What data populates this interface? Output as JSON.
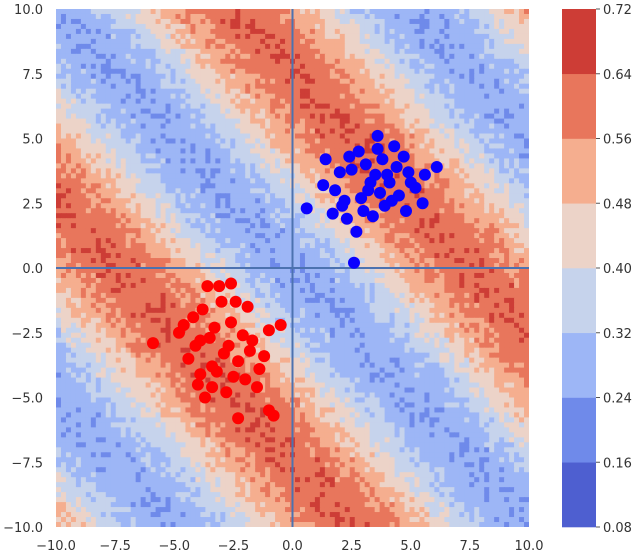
{
  "chart_data": {
    "type": "heatmap",
    "title": "",
    "xlabel": "",
    "ylabel": "",
    "xlim": [
      -10,
      10
    ],
    "ylim": [
      -10,
      10
    ],
    "x_ticks": [
      "−10.0",
      "−7.5",
      "−5.0",
      "−2.5",
      "0.0",
      "2.5",
      "5.0",
      "7.5",
      "10.0"
    ],
    "y_ticks": [
      "10.0",
      "7.5",
      "5.0",
      "2.5",
      "0.0",
      "−2.5",
      "−5.0",
      "−7.5",
      "−10.0"
    ],
    "x_tick_values": [
      -10,
      -7.5,
      -5,
      -2.5,
      0,
      2.5,
      5,
      7.5,
      10
    ],
    "y_tick_values": [
      10,
      7.5,
      5,
      2.5,
      0,
      -2.5,
      -5,
      -7.5,
      -10
    ],
    "reference_lines": {
      "x": 0,
      "y": 0,
      "color": "#4c72b0"
    },
    "grid": false,
    "heatmap": {
      "description_free": true,
      "surface_model": "band pattern along x + y",
      "color_bins": [
        {
          "range": [
            0.08,
            0.16
          ],
          "color": "#4e5fd0"
        },
        {
          "range": [
            0.16,
            0.24
          ],
          "color": "#6f8aea"
        },
        {
          "range": [
            0.24,
            0.32
          ],
          "color": "#9db6f6"
        },
        {
          "range": [
            0.32,
            0.4
          ],
          "color": "#c6d3ec"
        },
        {
          "range": [
            0.4,
            0.48
          ],
          "color": "#ecd3c8"
        },
        {
          "range": [
            0.48,
            0.56
          ],
          "color": "#f5ae8f"
        },
        {
          "range": [
            0.56,
            0.64
          ],
          "color": "#e8765c"
        },
        {
          "range": [
            0.64,
            0.72
          ],
          "color": "#cd3d36"
        }
      ]
    },
    "colorbar": {
      "ticks": [
        "0.72",
        "0.64",
        "0.56",
        "0.48",
        "0.40",
        "0.32",
        "0.24",
        "0.16",
        "0.08"
      ],
      "tick_values": [
        0.72,
        0.64,
        0.56,
        0.48,
        0.4,
        0.32,
        0.24,
        0.16,
        0.08
      ],
      "min": 0.08,
      "max": 0.72,
      "placement": "right"
    },
    "series": [
      {
        "color": "#0a00ff",
        "center": [
          3.5,
          3.5
        ],
        "points": [
          [
            0.6,
            2.3
          ],
          [
            1.4,
            4.2
          ],
          [
            1.8,
            3.0
          ],
          [
            2.2,
            2.6
          ],
          [
            2.5,
            3.8
          ],
          [
            2.8,
            4.5
          ],
          [
            3.2,
            3.0
          ],
          [
            3.5,
            3.6
          ],
          [
            3.8,
            4.2
          ],
          [
            4.1,
            3.3
          ],
          [
            4.5,
            2.8
          ],
          [
            4.9,
            3.7
          ],
          [
            5.2,
            3.1
          ],
          [
            5.6,
            3.6
          ],
          [
            6.1,
            3.9
          ],
          [
            3.0,
            2.2
          ],
          [
            2.3,
            1.9
          ],
          [
            2.7,
            1.4
          ],
          [
            3.6,
            5.1
          ],
          [
            4.3,
            4.7
          ],
          [
            3.1,
            4.0
          ],
          [
            3.9,
            2.4
          ],
          [
            2.0,
            3.7
          ],
          [
            1.7,
            2.1
          ],
          [
            4.7,
            4.3
          ],
          [
            5.5,
            2.5
          ],
          [
            2.6,
            0.2
          ],
          [
            3.4,
            2.0
          ],
          [
            4.4,
            3.9
          ],
          [
            3.3,
            3.3
          ],
          [
            2.9,
            2.7
          ],
          [
            4.0,
            3.6
          ],
          [
            3.7,
            2.9
          ],
          [
            2.4,
            4.3
          ],
          [
            4.8,
            2.2
          ],
          [
            1.3,
            3.2
          ],
          [
            3.6,
            4.6
          ],
          [
            2.1,
            2.4
          ],
          [
            5.0,
            3.3
          ],
          [
            4.2,
            2.6
          ]
        ]
      },
      {
        "color": "#ff0000",
        "center": [
          -3.5,
          -3.5
        ],
        "points": [
          [
            -5.9,
            -2.9
          ],
          [
            -4.6,
            -2.2
          ],
          [
            -4.1,
            -3.0
          ],
          [
            -3.8,
            -1.6
          ],
          [
            -3.5,
            -2.7
          ],
          [
            -3.2,
            -4.0
          ],
          [
            -2.9,
            -3.3
          ],
          [
            -2.6,
            -2.1
          ],
          [
            -2.3,
            -3.6
          ],
          [
            -2.0,
            -4.3
          ],
          [
            -1.7,
            -2.8
          ],
          [
            -1.4,
            -3.9
          ],
          [
            -1.0,
            -2.4
          ],
          [
            -0.5,
            -2.2
          ],
          [
            -0.8,
            -5.7
          ],
          [
            -1.0,
            -5.5
          ],
          [
            -2.3,
            -5.8
          ],
          [
            -3.4,
            -4.6
          ],
          [
            -3.9,
            -4.1
          ],
          [
            -4.4,
            -3.5
          ],
          [
            -4.8,
            -2.5
          ],
          [
            -3.0,
            -1.3
          ],
          [
            -2.4,
            -1.3
          ],
          [
            -1.9,
            -1.5
          ],
          [
            -3.6,
            -0.7
          ],
          [
            -3.1,
            -0.7
          ],
          [
            -2.6,
            -0.6
          ],
          [
            -3.3,
            -2.3
          ],
          [
            -2.8,
            -4.8
          ],
          [
            -1.5,
            -4.6
          ],
          [
            -4.2,
            -1.9
          ],
          [
            -3.7,
            -5.0
          ],
          [
            -2.1,
            -2.6
          ],
          [
            -1.2,
            -3.4
          ],
          [
            -4.0,
            -4.5
          ],
          [
            -3.4,
            -3.8
          ],
          [
            -2.7,
            -3.0
          ],
          [
            -1.8,
            -3.2
          ],
          [
            -3.9,
            -2.8
          ],
          [
            -2.5,
            -4.2
          ]
        ]
      }
    ]
  }
}
